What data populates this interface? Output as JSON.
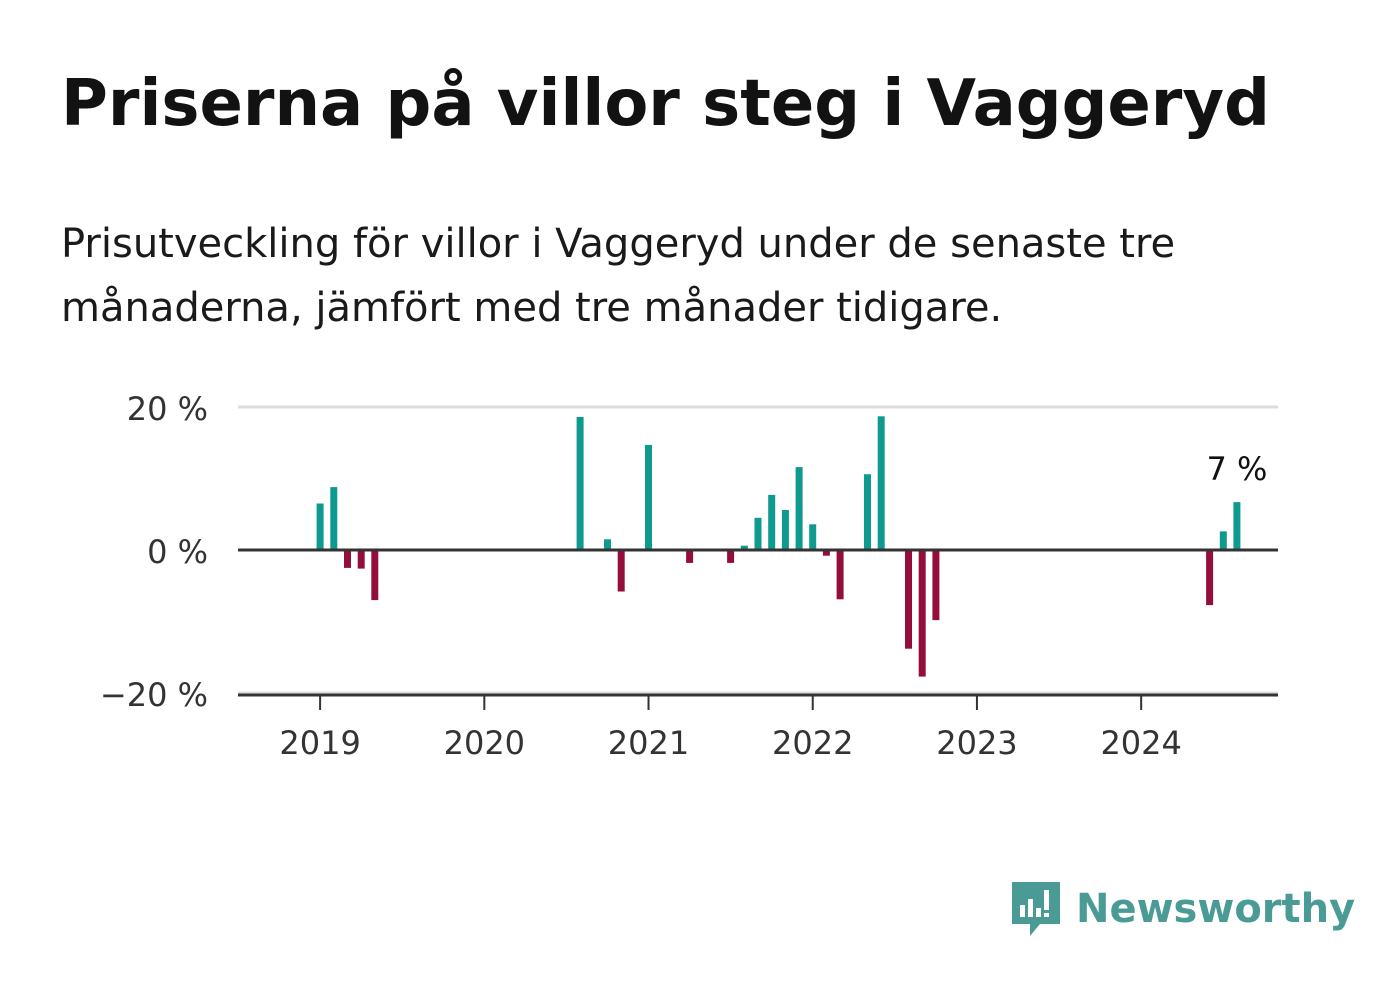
{
  "header": {
    "title": "Priserna på villor steg i Vaggeryd",
    "subtitle": "Prisutveckling för villor i Vaggeryd under de senaste tre månaderna, jämfört med tre månader tidigare."
  },
  "brand": {
    "name": "Newsworthy",
    "icon": "newsworthy-logo-icon",
    "color": "#4a9b95"
  },
  "colors": {
    "positive": "#0f9a8f",
    "negative": "#950d3b",
    "zero_line": "#333333",
    "grid": "#dddddd",
    "axis": "#333333"
  },
  "chart_data": {
    "type": "bar",
    "title": "Priserna på villor steg i Vaggeryd",
    "subtitle": "Prisutveckling för villor i Vaggeryd under de senaste tre månaderna, jämfört med tre månader tidigare.",
    "xlabel": "",
    "ylabel": "",
    "ylim": [
      -20,
      20
    ],
    "y_ticks": [
      20,
      0,
      -20
    ],
    "y_tick_labels": [
      "20 %",
      "0 %",
      "−20 %"
    ],
    "x_ticks": [
      2019,
      2020,
      2021,
      2022,
      2023,
      2024
    ],
    "x_tick_labels": [
      "2019",
      "2020",
      "2021",
      "2022",
      "2023",
      "2024"
    ],
    "x_range": [
      "2018-07",
      "2024-11"
    ],
    "grid": "horizontal",
    "annotation": {
      "date": "2024-08",
      "text": "7 %"
    },
    "x": [
      "2019-01",
      "2019-02",
      "2019-03",
      "2019-04",
      "2019-05",
      "2020-08",
      "2020-10",
      "2020-11",
      "2021-01",
      "2021-04",
      "2021-07",
      "2021-08",
      "2021-09",
      "2021-10",
      "2021-11",
      "2021-12",
      "2022-01",
      "2022-02",
      "2022-03",
      "2022-05",
      "2022-06",
      "2022-08",
      "2022-09",
      "2022-10",
      "2024-06",
      "2024-07",
      "2024-08"
    ],
    "values": [
      6.5,
      8.8,
      -2.5,
      -2.6,
      -7.0,
      18.6,
      1.5,
      -5.8,
      14.7,
      -1.8,
      -1.8,
      0.6,
      4.5,
      7.7,
      5.6,
      11.6,
      3.6,
      -0.8,
      -6.9,
      10.6,
      18.7,
      -13.8,
      -17.7,
      -9.8,
      -7.7,
      2.6,
      6.7
    ]
  }
}
